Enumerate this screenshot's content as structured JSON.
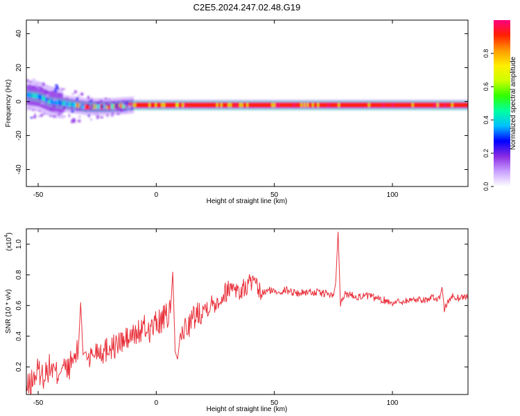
{
  "title": "C2E5.2024.247.02.48.G19",
  "spectrogram": {
    "chart_data": {
      "type": "heatmap",
      "xlabel": "Height of straight line (km)",
      "ylabel": "Frequency (Hz)",
      "xlim": [
        -55,
        132
      ],
      "ylim": [
        -50,
        48
      ],
      "xticks": [
        -50,
        0,
        50,
        100
      ],
      "yticks": [
        40,
        20,
        0,
        -20,
        -40
      ],
      "grid": false,
      "ridge": [
        {
          "x": -55,
          "y": 4
        },
        {
          "x": -50,
          "y": 3
        },
        {
          "x": -45,
          "y": 0
        },
        {
          "x": -40,
          "y": -1
        },
        {
          "x": -35,
          "y": -2
        },
        {
          "x": -30,
          "y": -3
        },
        {
          "x": -20,
          "y": -3
        },
        {
          "x": -10,
          "y": -2
        },
        {
          "x": 0,
          "y": -2
        },
        {
          "x": 25,
          "y": -2
        },
        {
          "x": 50,
          "y": -2
        },
        {
          "x": 75,
          "y": -2
        },
        {
          "x": 100,
          "y": -2
        },
        {
          "x": 132,
          "y": -2
        }
      ],
      "colorbar": {
        "label": "Normalized spectral amplitude",
        "range": [
          0.0,
          1.0
        ],
        "ticks": [
          "0.0",
          "0.2",
          "0.4",
          "0.6",
          "0.8"
        ],
        "colors": [
          "#ffffff",
          "#c9a0ff",
          "#8a2be2",
          "#0000ff",
          "#00c0ff",
          "#00ffa0",
          "#30ff00",
          "#ccff00",
          "#ffee00",
          "#ff9900",
          "#ff2000",
          "#ff0080"
        ]
      }
    }
  },
  "snr": {
    "chart_data": {
      "type": "line",
      "xlabel": "Height of straight line (km)",
      "ylabel": "SNR (10 * v/v)",
      "yscale_label": "(x10",
      "yscale_exp": "4",
      "xlim": [
        -55,
        132
      ],
      "ylim": [
        0.02,
        1.1
      ],
      "xticks": [
        -50,
        0,
        50,
        100
      ],
      "yticks": [
        "0.2",
        "0.4",
        "0.6",
        "0.8",
        "1.0"
      ],
      "ytick_values": [
        0.2,
        0.4,
        0.6,
        0.8,
        1.0
      ],
      "series": [
        {
          "color": "#e8303a",
          "x": [
            -55,
            -52,
            -50,
            -48,
            -45,
            -42,
            -40,
            -38,
            -35,
            -33,
            -32,
            -31,
            -30,
            -28,
            -25,
            -22,
            -20,
            -18,
            -15,
            -12,
            -10,
            -8,
            -5,
            -3,
            0,
            2,
            4,
            6,
            7,
            8,
            9,
            10,
            12,
            15,
            18,
            20,
            22,
            25,
            28,
            30,
            33,
            35,
            38,
            40,
            43,
            45,
            48,
            50,
            55,
            60,
            65,
            70,
            72,
            75,
            76,
            77,
            78,
            80,
            85,
            90,
            95,
            100,
            105,
            110,
            115,
            118,
            120,
            121,
            122,
            125,
            128,
            132
          ],
          "y": [
            0.05,
            0.12,
            0.18,
            0.14,
            0.2,
            0.15,
            0.22,
            0.17,
            0.25,
            0.3,
            0.62,
            0.28,
            0.3,
            0.26,
            0.32,
            0.3,
            0.34,
            0.33,
            0.36,
            0.38,
            0.4,
            0.42,
            0.45,
            0.44,
            0.48,
            0.5,
            0.52,
            0.55,
            0.82,
            0.3,
            0.25,
            0.38,
            0.45,
            0.5,
            0.56,
            0.58,
            0.6,
            0.62,
            0.66,
            0.7,
            0.74,
            0.68,
            0.72,
            0.76,
            0.7,
            0.68,
            0.7,
            0.69,
            0.7,
            0.68,
            0.69,
            0.68,
            0.68,
            0.66,
            0.75,
            1.08,
            0.6,
            0.68,
            0.66,
            0.66,
            0.64,
            0.62,
            0.63,
            0.64,
            0.64,
            0.65,
            0.64,
            0.72,
            0.58,
            0.66,
            0.65,
            0.66
          ]
        }
      ]
    }
  }
}
